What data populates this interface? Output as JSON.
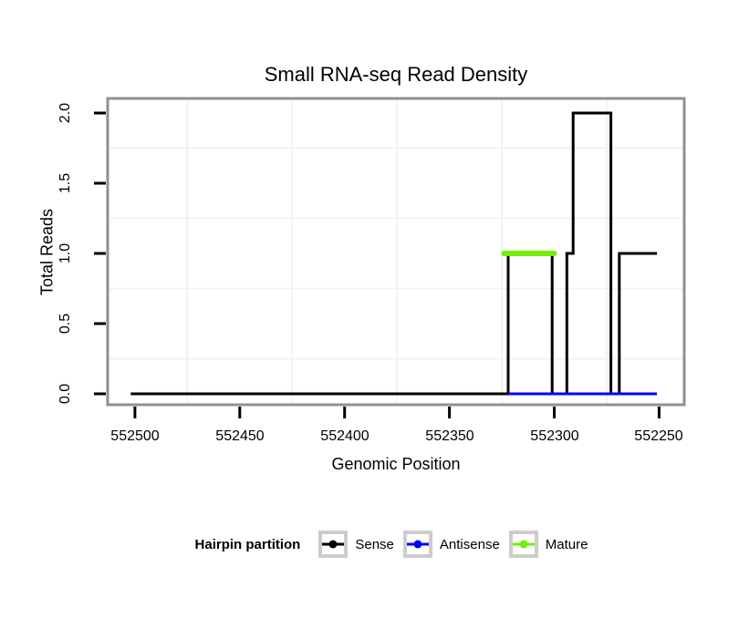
{
  "title": "Small RNA-seq Read Density",
  "axes": {
    "x": {
      "label": "Genomic Position",
      "tick_labels": [
        "552500",
        "552450",
        "552400",
        "552350",
        "552300",
        "552250"
      ],
      "tick_values": [
        552500,
        552450,
        552400,
        552350,
        552300,
        552250
      ],
      "direction": "reversed"
    },
    "y": {
      "label": "Total Reads",
      "tick_labels": [
        "0.0",
        "0.5",
        "1.0",
        "1.5",
        "2.0"
      ],
      "tick_values": [
        0,
        0.5,
        1,
        1.5,
        2
      ]
    }
  },
  "legend": {
    "title": "Hairpin partition",
    "items": [
      {
        "label": "Sense",
        "color": "#000000"
      },
      {
        "label": "Antisense",
        "color": "#0000ff"
      },
      {
        "label": "Mature",
        "color": "#76ee00"
      }
    ]
  },
  "colors": {
    "background": "#ffffff",
    "panel_border": "#909090",
    "minor_gridline": "#f3f3f3",
    "tick": "#000000",
    "legend_key_border": "#cccccc"
  },
  "chart_data": {
    "type": "line",
    "title": "Small RNA-seq Read Density",
    "xlabel": "Genomic Position",
    "ylabel": "Total Reads",
    "x_axis": {
      "left_value": 552513,
      "right_value": 552238,
      "reversed": true,
      "tick_values": [
        552500,
        552450,
        552400,
        552350,
        552300,
        552250
      ]
    },
    "ylim": [
      0,
      2
    ],
    "grid": "minor-only-light-gray",
    "legend_position": "bottom",
    "series": [
      {
        "name": "Sense",
        "color": "#000000",
        "stroke_width": 3,
        "style": "step",
        "points": [
          [
            552502,
            0
          ],
          [
            552322,
            0
          ],
          [
            552322,
            1
          ],
          [
            552301,
            1
          ],
          [
            552301,
            0
          ],
          [
            552294,
            0
          ],
          [
            552294,
            1
          ],
          [
            552291,
            1
          ],
          [
            552291,
            2
          ],
          [
            552273,
            2
          ],
          [
            552273,
            0
          ],
          [
            552269,
            0
          ],
          [
            552269,
            1
          ],
          [
            552251,
            1
          ]
        ]
      },
      {
        "name": "Antisense",
        "color": "#0000ff",
        "stroke_width": 3,
        "style": "line",
        "points": [
          [
            552322,
            0
          ],
          [
            552251,
            0
          ]
        ]
      },
      {
        "name": "Mature",
        "color": "#76ee00",
        "stroke_width": 6,
        "linecap": "round",
        "style": "line",
        "points": [
          [
            552324,
            1
          ],
          [
            552300,
            1
          ]
        ]
      }
    ]
  }
}
